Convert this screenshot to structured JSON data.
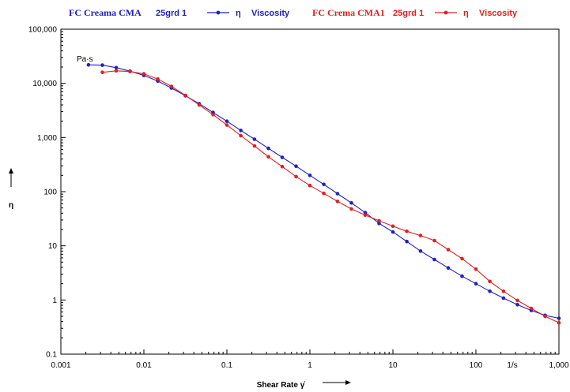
{
  "chart_data": {
    "type": "line",
    "x_scale": "log",
    "y_scale": "log",
    "xlim": [
      0.001,
      1000
    ],
    "ylim": [
      0.1,
      100000
    ],
    "xlabel": "Shear Rate γ̇",
    "ylabel": "η",
    "y_unit": "Pa·s",
    "x_unit": "1/s",
    "grid": false,
    "legend_position": "top",
    "x_ticks": [
      {
        "value": 0.001,
        "label": "0.001"
      },
      {
        "value": 0.01,
        "label": "0.01"
      },
      {
        "value": 0.1,
        "label": "0.1"
      },
      {
        "value": 1,
        "label": "1"
      },
      {
        "value": 10,
        "label": "10"
      },
      {
        "value": 100,
        "label": "100"
      },
      {
        "value": 1000,
        "label": "1,000"
      }
    ],
    "y_ticks": [
      {
        "value": 0.1,
        "label": "0.1"
      },
      {
        "value": 1,
        "label": "1"
      },
      {
        "value": 10,
        "label": "10"
      },
      {
        "value": 100,
        "label": "100"
      },
      {
        "value": 1000,
        "label": "1,000"
      },
      {
        "value": 10000,
        "label": "10,000"
      },
      {
        "value": 100000,
        "label": "100,000"
      }
    ],
    "series": [
      {
        "name": "FC Creama CMA 25grd 1",
        "legend_sample": "25grd 1",
        "legend_symbol": "η",
        "legend_quantity": "Viscosity",
        "color": "#2020c0",
        "points": [
          [
            0.00215,
            22000
          ],
          [
            0.00316,
            21700
          ],
          [
            0.00464,
            19500
          ],
          [
            0.00681,
            16800
          ],
          [
            0.01,
            14000
          ],
          [
            0.0147,
            11000
          ],
          [
            0.0215,
            8200
          ],
          [
            0.0316,
            5900
          ],
          [
            0.0464,
            4200
          ],
          [
            0.0681,
            2900
          ],
          [
            0.1,
            2000
          ],
          [
            0.147,
            1350
          ],
          [
            0.215,
            930
          ],
          [
            0.316,
            630
          ],
          [
            0.464,
            430
          ],
          [
            0.681,
            295
          ],
          [
            1,
            200
          ],
          [
            1.47,
            136
          ],
          [
            2.15,
            92
          ],
          [
            3.16,
            62
          ],
          [
            4.64,
            41
          ],
          [
            6.81,
            26
          ],
          [
            10,
            18
          ],
          [
            14.7,
            12
          ],
          [
            21.5,
            8
          ],
          [
            31.6,
            5.6
          ],
          [
            46.4,
            3.9
          ],
          [
            68.1,
            2.75
          ],
          [
            100,
            2.0
          ],
          [
            147,
            1.45
          ],
          [
            215,
            1.08
          ],
          [
            316,
            0.82
          ],
          [
            464,
            0.64
          ],
          [
            681,
            0.52
          ],
          [
            1000,
            0.46
          ]
        ]
      },
      {
        "name": "FC Crema CMA1 25grd 1",
        "legend_sample": "25grd 1",
        "legend_symbol": "η",
        "legend_quantity": "Viscosity",
        "color": "#e02020",
        "points": [
          [
            0.00316,
            16000
          ],
          [
            0.00464,
            17000
          ],
          [
            0.00681,
            16500
          ],
          [
            0.01,
            15000
          ],
          [
            0.0147,
            12000
          ],
          [
            0.0215,
            8800
          ],
          [
            0.0316,
            6000
          ],
          [
            0.0464,
            4000
          ],
          [
            0.0681,
            2650
          ],
          [
            0.1,
            1700
          ],
          [
            0.147,
            1080
          ],
          [
            0.215,
            700
          ],
          [
            0.316,
            440
          ],
          [
            0.464,
            290
          ],
          [
            0.681,
            190
          ],
          [
            1,
            130
          ],
          [
            1.47,
            93
          ],
          [
            2.15,
            66
          ],
          [
            3.16,
            48
          ],
          [
            4.64,
            37
          ],
          [
            6.81,
            29
          ],
          [
            10,
            23
          ],
          [
            14.7,
            18.5
          ],
          [
            21.5,
            15.5
          ],
          [
            31.6,
            12.5
          ],
          [
            46.4,
            8.5
          ],
          [
            68.1,
            5.8
          ],
          [
            100,
            3.7
          ],
          [
            147,
            2.2
          ],
          [
            215,
            1.45
          ],
          [
            316,
            0.98
          ],
          [
            464,
            0.7
          ],
          [
            681,
            0.5
          ],
          [
            1000,
            0.38
          ]
        ]
      }
    ]
  },
  "legend": [
    {
      "sample_prefix": "FC Creama CMA",
      "sample_suffix": "25grd 1",
      "symbol": "η",
      "quantity": "Viscosity",
      "color": "#2020c0"
    },
    {
      "sample_prefix": "FC Crema CMA1",
      "sample_suffix": "25grd 1",
      "symbol": "η",
      "quantity": "Viscosity",
      "color": "#e02020"
    }
  ]
}
